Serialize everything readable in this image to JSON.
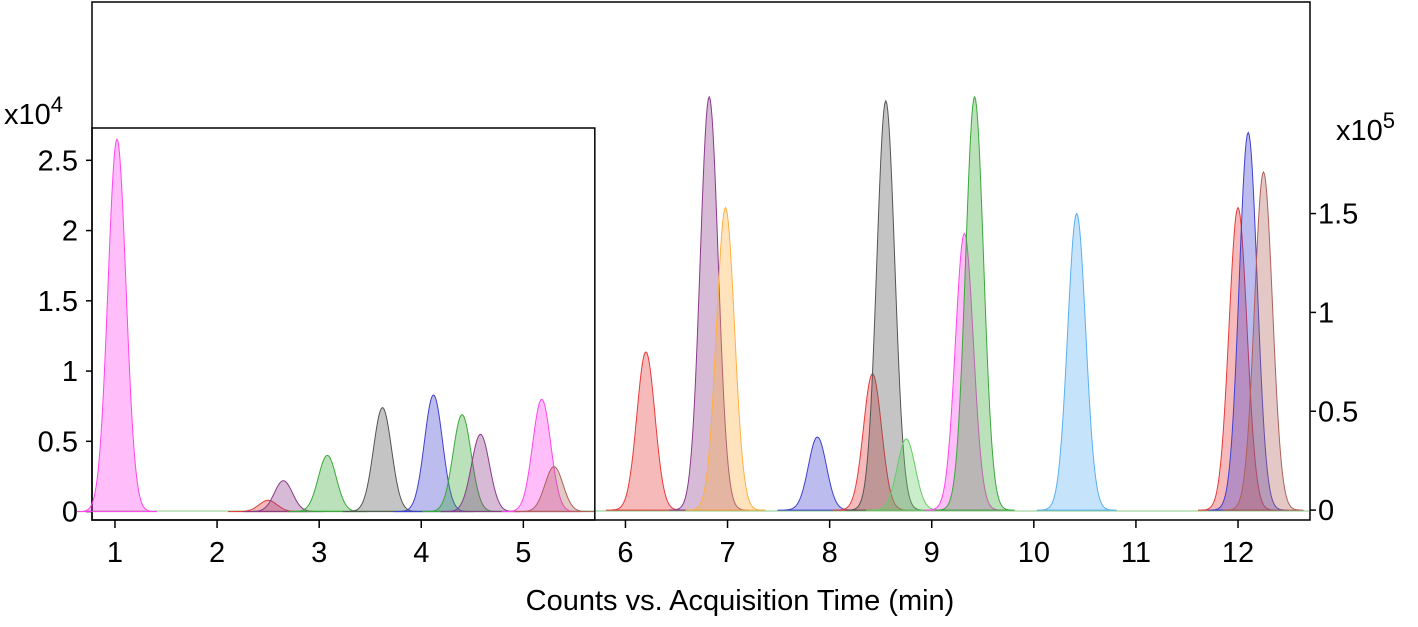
{
  "chart_data": {
    "type": "area",
    "x_label": "Counts vs. Acquisition Time (min)",
    "y_multiplier": {
      "base": "x10",
      "exponent": "4"
    },
    "y2_multiplier": {
      "base": "x10",
      "exponent": "5"
    },
    "xlim": [
      0.775,
      12.705
    ],
    "xticks": [
      1,
      2,
      3,
      4,
      5,
      6,
      7,
      8,
      9,
      10,
      11,
      12
    ],
    "inset_xlim": [
      0.775,
      5.7
    ],
    "ylim": [
      -0.06,
      2.73
    ],
    "yticks": [
      0,
      0.5,
      1,
      1.5,
      2,
      2.5
    ],
    "y2lim": [
      -0.05,
      2.57
    ],
    "y2ticks": [
      0,
      0.5,
      1,
      1.5
    ],
    "series": [
      {
        "color": "#ff44ee",
        "x": [
          1.02
        ],
        "values": [
          2.65
        ],
        "axis": "y"
      },
      {
        "color": "#e83a3a",
        "x": [
          2.5
        ],
        "values": [
          0.08
        ],
        "axis": "y"
      },
      {
        "color": "#8a3a8a",
        "x": [
          2.65
        ],
        "values": [
          0.22
        ],
        "axis": "y"
      },
      {
        "color": "#3aa83a",
        "x": [
          3.08
        ],
        "values": [
          0.4
        ],
        "axis": "y"
      },
      {
        "color": "#555555",
        "x": [
          3.62
        ],
        "values": [
          0.74
        ],
        "axis": "y"
      },
      {
        "color": "#4040d0",
        "x": [
          4.12
        ],
        "values": [
          0.83
        ],
        "axis": "y"
      },
      {
        "color": "#3aa83a",
        "x": [
          4.4
        ],
        "values": [
          0.69
        ],
        "axis": "y"
      },
      {
        "color": "#8a3a8a",
        "x": [
          4.58
        ],
        "values": [
          0.55
        ],
        "axis": "y"
      },
      {
        "color": "#ff44ee",
        "x": [
          5.18
        ],
        "values": [
          0.8
        ],
        "axis": "y"
      },
      {
        "color": "#b0605a",
        "x": [
          5.3
        ],
        "values": [
          0.32
        ],
        "axis": "y"
      },
      {
        "color": "#e83a3a",
        "x": [
          6.2
        ],
        "values": [
          0.8
        ],
        "axis": "y2"
      },
      {
        "color": "#8a3a8a",
        "x": [
          6.82
        ],
        "values": [
          2.09
        ],
        "axis": "y2"
      },
      {
        "color": "#ffb040",
        "x": [
          6.98
        ],
        "values": [
          1.53
        ],
        "axis": "y2"
      },
      {
        "color": "#4040d0",
        "x": [
          7.88
        ],
        "values": [
          0.37
        ],
        "axis": "y2"
      },
      {
        "color": "#e83a3a",
        "x": [
          8.42
        ],
        "values": [
          0.69
        ],
        "axis": "y2"
      },
      {
        "color": "#555555",
        "x": [
          8.55
        ],
        "values": [
          2.07
        ],
        "axis": "y2"
      },
      {
        "color": "#66cc66",
        "x": [
          8.75
        ],
        "values": [
          0.36
        ],
        "axis": "y2"
      },
      {
        "color": "#ff44ee",
        "x": [
          9.32
        ],
        "values": [
          1.4
        ],
        "axis": "y2"
      },
      {
        "color": "#3aa83a",
        "x": [
          9.42
        ],
        "values": [
          2.09
        ],
        "axis": "y2"
      },
      {
        "color": "#5ab0f0",
        "x": [
          10.42
        ],
        "values": [
          1.5
        ],
        "axis": "y2"
      },
      {
        "color": "#e83a3a",
        "x": [
          12.0
        ],
        "values": [
          1.53
        ],
        "axis": "y2"
      },
      {
        "color": "#4040d0",
        "x": [
          12.1
        ],
        "values": [
          1.91
        ],
        "axis": "y2"
      },
      {
        "color": "#b0605a",
        "x": [
          12.25
        ],
        "values": [
          1.71
        ],
        "axis": "y2"
      }
    ]
  }
}
